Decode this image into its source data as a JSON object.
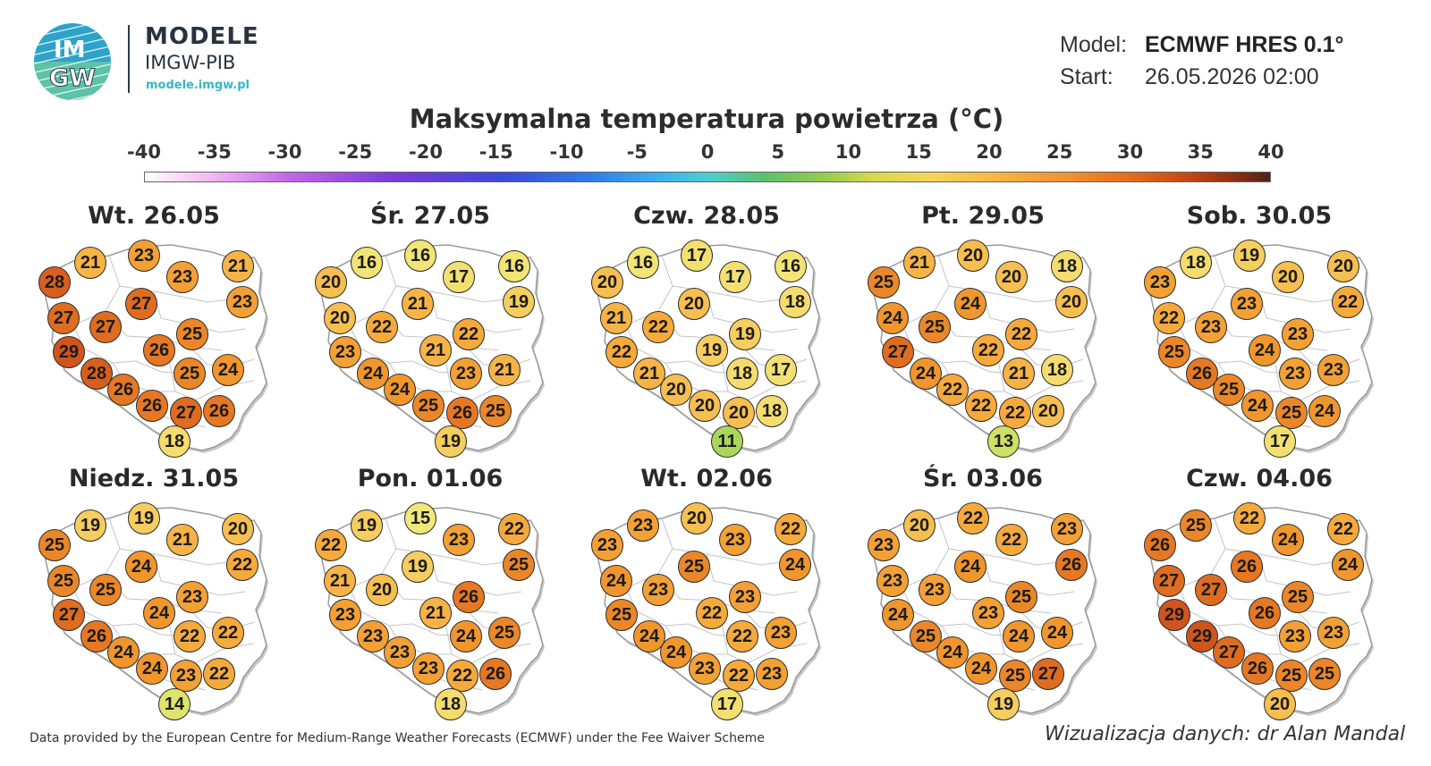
{
  "brand": {
    "logo_text_top": "IM",
    "logo_text_bottom": "GW",
    "title": "MODELE",
    "subtitle": "IMGW-PIB",
    "url": "modele.imgw.pl",
    "colors": {
      "logo_blue": "#2ea3c9",
      "logo_green": "#5cc2a8",
      "text": "#27343f",
      "url": "#38b6c4"
    }
  },
  "meta": {
    "model_label": "Model:",
    "model_value": "ECMWF HRES 0.1°",
    "start_label": "Start:",
    "start_value": "26.05.2026 02:00"
  },
  "title": "Maksymalna temperatura powietrza (°C)",
  "scale": {
    "labels": [
      "-40",
      "-35",
      "-30",
      "-25",
      "-20",
      "-15",
      "-10",
      "-5",
      "0",
      "5",
      "10",
      "15",
      "20",
      "25",
      "30",
      "35",
      "40"
    ],
    "min": -40,
    "max": 40
  },
  "panels": [
    {
      "date": "Wt. 26.05",
      "values": [
        28,
        21,
        23,
        21,
        23,
        23,
        27,
        27,
        27,
        25,
        29,
        26,
        28,
        25,
        24,
        26,
        26,
        27,
        26,
        18
      ]
    },
    {
      "date": "Śr. 27.05",
      "values": [
        20,
        16,
        16,
        16,
        17,
        19,
        21,
        20,
        22,
        22,
        23,
        21,
        24,
        23,
        21,
        24,
        25,
        26,
        25,
        19
      ]
    },
    {
      "date": "Czw. 28.05",
      "values": [
        20,
        16,
        17,
        16,
        17,
        18,
        20,
        21,
        22,
        19,
        22,
        19,
        21,
        18,
        17,
        20,
        20,
        20,
        18,
        11
      ]
    },
    {
      "date": "Pt. 29.05",
      "values": [
        25,
        21,
        20,
        18,
        20,
        20,
        24,
        24,
        25,
        22,
        27,
        22,
        24,
        21,
        18,
        22,
        22,
        22,
        20,
        13
      ]
    },
    {
      "date": "Sob. 30.05",
      "values": [
        23,
        18,
        19,
        20,
        20,
        22,
        23,
        22,
        23,
        23,
        25,
        24,
        26,
        23,
        23,
        25,
        24,
        25,
        24,
        17
      ]
    },
    {
      "date": "Niedz. 31.05",
      "values": [
        25,
        19,
        19,
        20,
        21,
        22,
        24,
        25,
        25,
        23,
        27,
        24,
        26,
        22,
        22,
        24,
        24,
        23,
        22,
        14
      ]
    },
    {
      "date": "Pon. 01.06",
      "values": [
        22,
        19,
        15,
        22,
        23,
        25,
        19,
        21,
        20,
        26,
        23,
        21,
        23,
        24,
        25,
        23,
        23,
        22,
        26,
        18
      ]
    },
    {
      "date": "Wt. 02.06",
      "values": [
        23,
        23,
        20,
        22,
        23,
        24,
        25,
        24,
        23,
        23,
        25,
        22,
        24,
        22,
        23,
        24,
        23,
        22,
        23,
        17
      ]
    },
    {
      "date": "Śr. 03.06",
      "values": [
        23,
        20,
        22,
        23,
        22,
        26,
        24,
        23,
        23,
        25,
        24,
        23,
        25,
        24,
        24,
        24,
        24,
        25,
        27,
        19
      ]
    },
    {
      "date": "Czw. 04.06",
      "values": [
        26,
        25,
        22,
        22,
        24,
        24,
        26,
        27,
        27,
        25,
        29,
        26,
        29,
        23,
        23,
        27,
        26,
        25,
        25,
        20
      ]
    }
  ],
  "footer": {
    "left": "Data provided by the European Centre for Medium-Range Weather Forecasts (ECMWF) under the Fee Waiver Scheme",
    "right": "Wizualizacja danych: dr Alan Mandal"
  }
}
